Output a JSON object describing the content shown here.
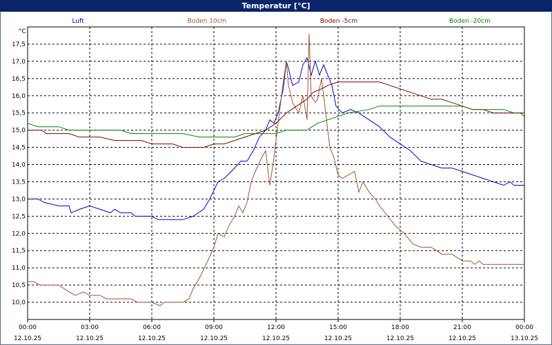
{
  "window": {
    "title": "Temperatur [°C]"
  },
  "colors": {
    "titlebar": "#0a246a",
    "grid": "#000000"
  },
  "chart_data": {
    "type": "line",
    "title": "Temperatur [°C]",
    "ylabel": "°C",
    "xlabel": "",
    "ylim": [
      9.5,
      18.0
    ],
    "xlim": [
      "12.10.25 00:00",
      "13.10.25 00:00"
    ],
    "grid": true,
    "legend_position": "top",
    "y_ticks": [
      "10,0",
      "10,5",
      "11,0",
      "11,5",
      "12,0",
      "12,5",
      "13,0",
      "13,5",
      "14,0",
      "14,5",
      "15,0",
      "15,5",
      "16,0",
      "16,5",
      "17,0",
      "17,5"
    ],
    "x_ticks": [
      {
        "time": "00:00",
        "date": "12.10.25"
      },
      {
        "time": "03:00",
        "date": "12.10.25"
      },
      {
        "time": "06:00",
        "date": "12.10.25"
      },
      {
        "time": "09:00",
        "date": "12.10.25"
      },
      {
        "time": "12:00",
        "date": "12.10.25"
      },
      {
        "time": "15:00",
        "date": "12.10.25"
      },
      {
        "time": "18:00",
        "date": "12.10.25"
      },
      {
        "time": "21:00",
        "date": "12.10.25"
      },
      {
        "time": "00:00",
        "date": "13.10.25"
      }
    ],
    "series": [
      {
        "name": "Luft",
        "color": "#0000cc",
        "points": [
          [
            0,
            13.0
          ],
          [
            0.5,
            13.0
          ],
          [
            0.8,
            12.9
          ],
          [
            1.5,
            12.8
          ],
          [
            2,
            12.8
          ],
          [
            2.1,
            12.6
          ],
          [
            2.5,
            12.7
          ],
          [
            3,
            12.8
          ],
          [
            3.5,
            12.7
          ],
          [
            4,
            12.6
          ],
          [
            4.2,
            12.7
          ],
          [
            4.5,
            12.6
          ],
          [
            5,
            12.6
          ],
          [
            5.2,
            12.5
          ],
          [
            6,
            12.5
          ],
          [
            6.3,
            12.4
          ],
          [
            7,
            12.4
          ],
          [
            7.5,
            12.4
          ],
          [
            8,
            12.5
          ],
          [
            8.5,
            12.7
          ],
          [
            8.8,
            13.0
          ],
          [
            9.2,
            13.5
          ],
          [
            9.5,
            13.6
          ],
          [
            10,
            13.9
          ],
          [
            10.3,
            14.1
          ],
          [
            10.6,
            14.1
          ],
          [
            10.9,
            14.4
          ],
          [
            11.2,
            14.8
          ],
          [
            11.5,
            15.0
          ],
          [
            11.7,
            15.3
          ],
          [
            11.9,
            15.2
          ],
          [
            12.1,
            15.5
          ],
          [
            12.35,
            16.2
          ],
          [
            12.5,
            17.0
          ],
          [
            12.6,
            16.8
          ],
          [
            12.8,
            16.3
          ],
          [
            13.1,
            16.4
          ],
          [
            13.3,
            16.9
          ],
          [
            13.5,
            17.1
          ],
          [
            13.7,
            16.6
          ],
          [
            13.9,
            17.0
          ],
          [
            14.1,
            16.6
          ],
          [
            14.3,
            16.9
          ],
          [
            14.5,
            16.6
          ],
          [
            14.7,
            16.3
          ],
          [
            14.9,
            15.7
          ],
          [
            15.2,
            15.5
          ],
          [
            15.6,
            15.6
          ],
          [
            16,
            15.5
          ],
          [
            16.5,
            15.3
          ],
          [
            17,
            15.1
          ],
          [
            17.5,
            14.8
          ],
          [
            18,
            14.6
          ],
          [
            18.5,
            14.4
          ],
          [
            19,
            14.1
          ],
          [
            19.5,
            14.0
          ],
          [
            20,
            13.9
          ],
          [
            20.5,
            13.9
          ],
          [
            21,
            13.8
          ],
          [
            21.5,
            13.7
          ],
          [
            22,
            13.6
          ],
          [
            22.5,
            13.5
          ],
          [
            23,
            13.4
          ],
          [
            23.3,
            13.5
          ],
          [
            23.5,
            13.4
          ],
          [
            24,
            13.4
          ]
        ]
      },
      {
        "name": "Boden 10cm",
        "color": "#a0522d",
        "points": [
          [
            0,
            10.6
          ],
          [
            0.3,
            10.6
          ],
          [
            0.6,
            10.5
          ],
          [
            1.5,
            10.5
          ],
          [
            2,
            10.3
          ],
          [
            2.3,
            10.2
          ],
          [
            2.7,
            10.3
          ],
          [
            3,
            10.2
          ],
          [
            3.5,
            10.2
          ],
          [
            3.8,
            10.1
          ],
          [
            4.5,
            10.1
          ],
          [
            5,
            10.1
          ],
          [
            5.3,
            10.0
          ],
          [
            6,
            10.0
          ],
          [
            6.4,
            9.9
          ],
          [
            6.6,
            10.0
          ],
          [
            7.5,
            10.0
          ],
          [
            7.8,
            10.1
          ],
          [
            8,
            10.4
          ],
          [
            8.3,
            10.7
          ],
          [
            8.7,
            11.2
          ],
          [
            9,
            11.6
          ],
          [
            9.2,
            12.0
          ],
          [
            9.5,
            11.9
          ],
          [
            9.7,
            12.2
          ],
          [
            10,
            12.5
          ],
          [
            10.2,
            12.8
          ],
          [
            10.4,
            12.6
          ],
          [
            10.6,
            12.9
          ],
          [
            10.8,
            13.5
          ],
          [
            11,
            13.8
          ],
          [
            11.3,
            14.2
          ],
          [
            11.5,
            14.4
          ],
          [
            11.7,
            13.4
          ],
          [
            11.9,
            14.2
          ],
          [
            12.1,
            15.2
          ],
          [
            12.35,
            16.4
          ],
          [
            12.5,
            17.0
          ],
          [
            12.6,
            16.3
          ],
          [
            12.8,
            15.8
          ],
          [
            13.1,
            15.5
          ],
          [
            13.3,
            16.0
          ],
          [
            13.5,
            15.3
          ],
          [
            13.6,
            17.8
          ],
          [
            13.7,
            16.0
          ],
          [
            13.9,
            15.8
          ],
          [
            14.0,
            15.9
          ],
          [
            14.2,
            16.5
          ],
          [
            14.4,
            15.5
          ],
          [
            14.6,
            14.5
          ],
          [
            14.8,
            14.2
          ],
          [
            15.0,
            13.7
          ],
          [
            15.2,
            13.6
          ],
          [
            15.5,
            13.7
          ],
          [
            15.8,
            13.8
          ],
          [
            16.0,
            13.2
          ],
          [
            16.2,
            13.5
          ],
          [
            16.5,
            13.2
          ],
          [
            16.8,
            13.0
          ],
          [
            17,
            12.8
          ],
          [
            17.4,
            12.5
          ],
          [
            17.8,
            12.2
          ],
          [
            18.2,
            12.0
          ],
          [
            18.6,
            11.7
          ],
          [
            19,
            11.6
          ],
          [
            19.5,
            11.6
          ],
          [
            20,
            11.4
          ],
          [
            20.5,
            11.4
          ],
          [
            21,
            11.2
          ],
          [
            21.4,
            11.2
          ],
          [
            21.6,
            11.1
          ],
          [
            21.8,
            11.2
          ],
          [
            22,
            11.1
          ],
          [
            22.5,
            11.1
          ],
          [
            23,
            11.1
          ],
          [
            24,
            11.1
          ]
        ]
      },
      {
        "name": "Boden -5cm",
        "color": "#800000",
        "points": [
          [
            0,
            15.0
          ],
          [
            0.7,
            15.0
          ],
          [
            0.9,
            14.9
          ],
          [
            2,
            14.9
          ],
          [
            2.5,
            14.8
          ],
          [
            3.5,
            14.8
          ],
          [
            4.2,
            14.7
          ],
          [
            5.5,
            14.7
          ],
          [
            6,
            14.6
          ],
          [
            7,
            14.6
          ],
          [
            7.5,
            14.5
          ],
          [
            8.5,
            14.5
          ],
          [
            9,
            14.6
          ],
          [
            9.5,
            14.6
          ],
          [
            10,
            14.7
          ],
          [
            10.5,
            14.8
          ],
          [
            11,
            14.9
          ],
          [
            11.5,
            15.0
          ],
          [
            12,
            15.2
          ],
          [
            12.5,
            15.5
          ],
          [
            13,
            15.7
          ],
          [
            13.5,
            15.9
          ],
          [
            13.8,
            16.1
          ],
          [
            14.2,
            16.2
          ],
          [
            14.5,
            16.3
          ],
          [
            15,
            16.4
          ],
          [
            16,
            16.4
          ],
          [
            17,
            16.4
          ],
          [
            17.5,
            16.3
          ],
          [
            18,
            16.2
          ],
          [
            18.5,
            16.1
          ],
          [
            19,
            16.0
          ],
          [
            19.5,
            15.9
          ],
          [
            20,
            15.9
          ],
          [
            20.5,
            15.8
          ],
          [
            21,
            15.7
          ],
          [
            21.5,
            15.6
          ],
          [
            22,
            15.6
          ],
          [
            22.5,
            15.5
          ],
          [
            23,
            15.5
          ],
          [
            24,
            15.5
          ]
        ]
      },
      {
        "name": "Boden -20cm",
        "color": "#008000",
        "points": [
          [
            0,
            15.2
          ],
          [
            0.5,
            15.1
          ],
          [
            1.5,
            15.1
          ],
          [
            2,
            15.0
          ],
          [
            4.5,
            15.0
          ],
          [
            5,
            14.9
          ],
          [
            7.5,
            14.9
          ],
          [
            8.3,
            14.8
          ],
          [
            10,
            14.8
          ],
          [
            10.5,
            14.9
          ],
          [
            12,
            14.9
          ],
          [
            12.5,
            15.0
          ],
          [
            13.5,
            15.0
          ],
          [
            14,
            15.2
          ],
          [
            14.5,
            15.3
          ],
          [
            15,
            15.4
          ],
          [
            15.5,
            15.5
          ],
          [
            16.5,
            15.6
          ],
          [
            17,
            15.7
          ],
          [
            18,
            15.7
          ],
          [
            21,
            15.7
          ],
          [
            21.5,
            15.6
          ],
          [
            23,
            15.6
          ],
          [
            23.5,
            15.5
          ],
          [
            23.8,
            15.5
          ],
          [
            24,
            15.4
          ]
        ]
      }
    ]
  }
}
